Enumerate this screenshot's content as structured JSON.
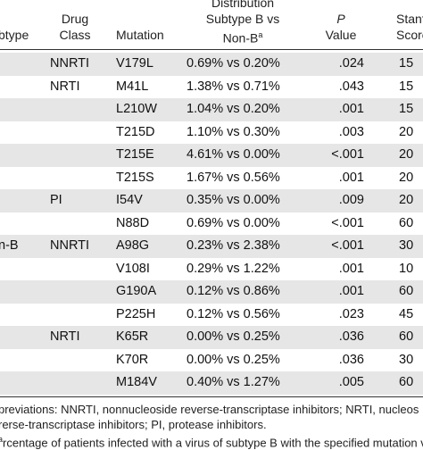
{
  "table": {
    "headers": {
      "subtype": "btype",
      "drug_class_line1": "Drug",
      "drug_class_line2": "Class",
      "mutation": "Mutation",
      "distribution_line1": "Distribution",
      "distribution_line2": "Subtype B vs",
      "distribution_line3": "Non-B",
      "distribution_sup": "a",
      "p_line1": "P",
      "p_line2": "Value",
      "score_line1": "Stanfo",
      "score_line2": "Score"
    },
    "rows": [
      {
        "subtype": "",
        "drug_class": "NNRTI",
        "mutation": "V179L",
        "distribution": "0.69% vs 0.20%",
        "p": ".024",
        "score": "15"
      },
      {
        "subtype": "",
        "drug_class": "NRTI",
        "mutation": "M41L",
        "distribution": "1.38% vs 0.71%",
        "p": ".043",
        "score": "15"
      },
      {
        "subtype": "",
        "drug_class": "",
        "mutation": "L210W",
        "distribution": "1.04% vs 0.20%",
        "p": ".001",
        "score": "15"
      },
      {
        "subtype": "",
        "drug_class": "",
        "mutation": "T215D",
        "distribution": "1.10% vs 0.30%",
        "p": ".003",
        "score": "20"
      },
      {
        "subtype": "",
        "drug_class": "",
        "mutation": "T215E",
        "distribution": "4.61% vs 0.00%",
        "p": "<.001",
        "score": "20"
      },
      {
        "subtype": "",
        "drug_class": "",
        "mutation": "T215S",
        "distribution": "1.67% vs 0.56%",
        "p": ".001",
        "score": "20"
      },
      {
        "subtype": "",
        "drug_class": "PI",
        "mutation": "I54V",
        "distribution": "0.35% vs 0.00%",
        "p": ".009",
        "score": "20"
      },
      {
        "subtype": "",
        "drug_class": "",
        "mutation": "N88D",
        "distribution": "0.69% vs 0.00%",
        "p": "<.001",
        "score": "60"
      },
      {
        "subtype": "n-B",
        "drug_class": "NNRTI",
        "mutation": "A98G",
        "distribution": "0.23% vs 2.38%",
        "p": "<.001",
        "score": "30"
      },
      {
        "subtype": "",
        "drug_class": "",
        "mutation": "V108I",
        "distribution": "0.29% vs 1.22%",
        "p": ".001",
        "score": "10"
      },
      {
        "subtype": "",
        "drug_class": "",
        "mutation": "G190A",
        "distribution": "0.12% vs 0.86%",
        "p": ".001",
        "score": "60"
      },
      {
        "subtype": "",
        "drug_class": "",
        "mutation": "P225H",
        "distribution": "0.12% vs 0.56%",
        "p": ".023",
        "score": "45"
      },
      {
        "subtype": "",
        "drug_class": "NRTI",
        "mutation": "K65R",
        "distribution": "0.00% vs 0.25%",
        "p": ".036",
        "score": "60"
      },
      {
        "subtype": "",
        "drug_class": "",
        "mutation": "K70R",
        "distribution": "0.00% vs 0.25%",
        "p": ".036",
        "score": "30"
      },
      {
        "subtype": "",
        "drug_class": "",
        "mutation": "M184V",
        "distribution": "0.40% vs 1.27%",
        "p": ".005",
        "score": "60"
      }
    ]
  },
  "footnotes": {
    "line1": "previations: NNRTI, nonnucleoside reverse-transcriptase inhibitors; NRTI, nucleos",
    "line2": "rerse-transcriptase inhibitors; PI, protease inhibitors.",
    "line3_sup": "a",
    "line3": "rcentage of patients infected with a virus of subtype B with the specified mutation ve"
  }
}
